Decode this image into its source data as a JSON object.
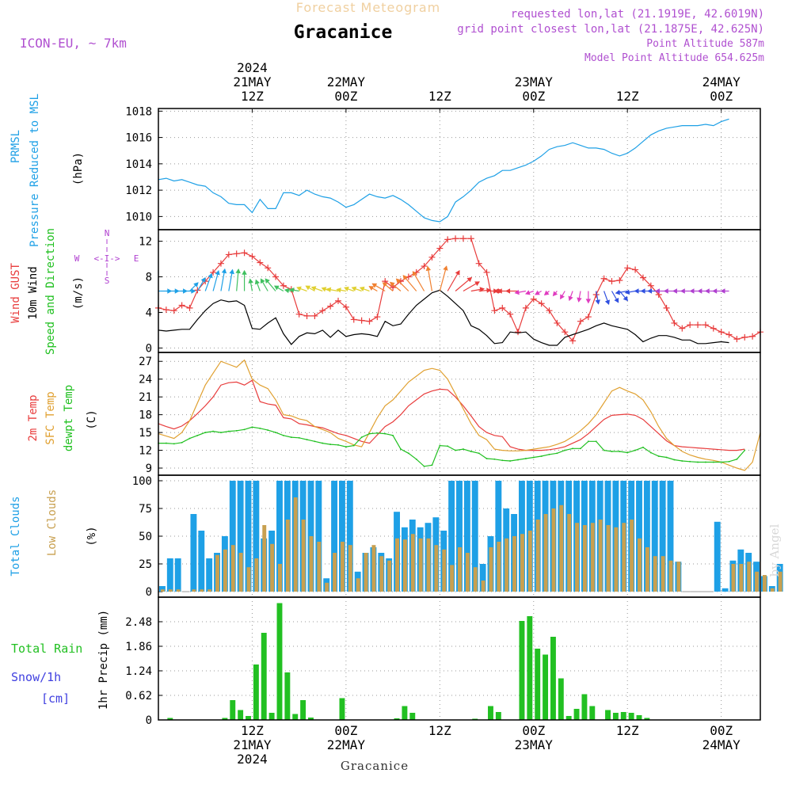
{
  "header": {
    "product_title": "Forecast Meteogram",
    "location": "Gracanice",
    "model": "ICON-EU, ~ 7km",
    "requested": "requested lon,lat (21.1919E, 42.6019N)",
    "grid_point": "grid point closest lon,lat (21.1875E, 42.625N)",
    "point_altitude": "Point Altitude 587m",
    "model_altitude": "Model Point Altitude 654.625m"
  },
  "time_axis": {
    "top_labels": [
      {
        "hour": 12,
        "lines": [
          "2024",
          "21MAY",
          "12Z"
        ]
      },
      {
        "hour": 24,
        "lines": [
          "22MAY",
          "00Z"
        ]
      },
      {
        "hour": 36,
        "lines": [
          "12Z"
        ]
      },
      {
        "hour": 48,
        "lines": [
          "23MAY",
          "00Z"
        ]
      },
      {
        "hour": 60,
        "lines": [
          "12Z"
        ]
      },
      {
        "hour": 72,
        "lines": [
          "24MAY",
          "00Z"
        ]
      }
    ],
    "bottom_labels": [
      {
        "hour": 12,
        "lines": [
          "12Z",
          "21MAY",
          "2024"
        ]
      },
      {
        "hour": 24,
        "lines": [
          "00Z",
          "22MAY"
        ]
      },
      {
        "hour": 36,
        "lines": [
          "12Z"
        ]
      },
      {
        "hour": 48,
        "lines": [
          "00Z",
          "23MAY"
        ]
      },
      {
        "hour": 60,
        "lines": [
          "12Z"
        ]
      },
      {
        "hour": 72,
        "lines": [
          "00Z",
          "24MAY"
        ]
      }
    ],
    "footer": "Gracanice",
    "watermark": "by Angel",
    "range_hours": [
      0,
      77
    ]
  },
  "colors": {
    "pressure": "#1ea0e6",
    "gust": "#e83c3c",
    "wind": "#000000",
    "temp2m": "#e83c3c",
    "sfc": "#e0a030",
    "dewpt": "#20c020",
    "total_cloud": "#1ea0e6",
    "low_cloud": "#c8a050",
    "rain": "#22c022",
    "snow": "#4040e0",
    "compass": "#b040d0",
    "header_purple": "#b050d0",
    "header_title": "#f0d0a0"
  },
  "chart_data": [
    {
      "type": "line",
      "panel": "pressure",
      "labels": {
        "left1": "PRMSL",
        "left2": "Pressure Reduced to MSL",
        "unit": "(hPa)"
      },
      "yticks": [
        1010,
        1012,
        1014,
        1016,
        1018
      ],
      "ylim": [
        1009,
        1018.2
      ],
      "x_start": 0,
      "x_step": 1,
      "series": [
        {
          "values": [
            1012.8,
            1012.9,
            1012.7,
            1012.8,
            1012.6,
            1012.4,
            1012.3,
            1011.8,
            1011.5,
            1011.0,
            1010.9,
            1010.9,
            1010.3,
            1011.3,
            1010.6,
            1010.6,
            1011.8,
            1011.8,
            1011.6,
            1012.0,
            1011.7,
            1011.5,
            1011.4,
            1011.1,
            1010.7,
            1010.9,
            1011.3,
            1011.7,
            1011.5,
            1011.4,
            1011.6,
            1011.3,
            1010.9,
            1010.4,
            1009.9,
            1009.7,
            1009.6,
            1010.0,
            1011.1,
            1011.5,
            1012.0,
            1012.6,
            1012.9,
            1013.1,
            1013.5,
            1013.5,
            1013.7,
            1013.9,
            1014.2,
            1014.6,
            1015.1,
            1015.3,
            1015.4,
            1015.6,
            1015.4,
            1015.2,
            1015.2,
            1015.1,
            1014.8,
            1014.6,
            1014.8,
            1015.2,
            1015.7,
            1016.2,
            1016.5,
            1016.7,
            1016.8,
            1016.9,
            1016.9,
            1016.9,
            1017.0,
            1016.9,
            1017.2,
            1017.4
          ]
        }
      ]
    },
    {
      "type": "line",
      "panel": "wind",
      "labels": {
        "left1": "Wind GUST",
        "left2": "10m Wind",
        "left3": "Speed and Direction",
        "unit": "(m/s)"
      },
      "compass": {
        "n": "N",
        "s": "S",
        "w": "W",
        "e": "E",
        "arrows": "<-I->"
      },
      "yticks": [
        0,
        4,
        8,
        12
      ],
      "ylim": [
        -0.5,
        13.3
      ],
      "x_start": 0,
      "x_step": 1,
      "series": [
        {
          "name": "gust",
          "values": [
            4.5,
            4.3,
            4.2,
            4.8,
            4.5,
            6.5,
            7.5,
            8.5,
            9.5,
            10.5,
            10.6,
            10.7,
            10.3,
            9.6,
            9.0,
            8.0,
            7.0,
            6.6,
            3.8,
            3.6,
            3.6,
            4.2,
            4.7,
            5.3,
            4.6,
            3.2,
            3.1,
            3.0,
            3.5,
            7.5,
            6.8,
            7.5,
            8.0,
            8.5,
            9.2,
            10.2,
            11.2,
            12.2,
            12.3,
            12.3,
            12.3,
            9.5,
            8.5,
            4.2,
            4.5,
            3.8,
            1.8,
            4.5,
            5.5,
            5.0,
            4.2,
            2.8,
            1.8,
            0.8,
            3.0,
            3.5,
            6.0,
            7.8,
            7.5,
            7.6,
            9.0,
            8.8,
            7.9,
            7.0,
            6.0,
            4.5,
            2.8,
            2.2,
            2.6,
            2.6,
            2.6,
            2.2,
            1.8,
            1.5,
            1.0,
            1.2,
            1.3,
            1.8
          ]
        },
        {
          "name": "wind",
          "values": [
            2.0,
            1.9,
            2.0,
            2.1,
            2.1,
            3.2,
            4.2,
            5.0,
            5.4,
            5.2,
            5.3,
            4.8,
            2.2,
            2.1,
            2.8,
            3.4,
            1.6,
            0.4,
            1.3,
            1.7,
            1.6,
            2.0,
            1.2,
            2.0,
            1.3,
            1.5,
            1.6,
            1.5,
            1.3,
            3.0,
            2.5,
            2.7,
            3.8,
            4.8,
            5.5,
            6.2,
            6.5,
            5.8,
            5.0,
            4.2,
            2.5,
            2.1,
            1.4,
            0.5,
            0.6,
            1.8,
            1.7,
            1.8,
            1.0,
            0.6,
            0.3,
            0.3,
            1.2,
            1.5,
            1.8,
            2.1,
            2.5,
            2.8,
            2.5,
            2.3,
            2.1,
            1.5,
            0.7,
            1.1,
            1.4,
            1.4,
            1.2,
            0.9,
            0.9,
            0.5,
            0.5,
            0.6,
            0.7,
            0.6
          ]
        }
      ],
      "wind_arrows": {
        "dir_deg": [
          90,
          90,
          90,
          90,
          45,
          30,
          20,
          15,
          10,
          10,
          5,
          0,
          -10,
          -20,
          -30,
          -40,
          -60,
          -80,
          -80,
          -70,
          -60,
          -70,
          -70,
          -80,
          -80,
          -70,
          -70,
          -70,
          -60,
          -60,
          -50,
          -50,
          -45,
          -40,
          -30,
          -10,
          15,
          30,
          50,
          60,
          80,
          85,
          90,
          90,
          -90,
          -90,
          -90,
          -100,
          -110,
          -120,
          -130,
          -140,
          -150,
          -160,
          -170,
          180,
          170,
          160,
          150,
          140,
          -100,
          -100,
          -90,
          -90,
          -90,
          -90,
          -90,
          -90,
          -90,
          -90,
          -90,
          -90,
          -90,
          -90
        ],
        "color_stops": [
          "#1ea0e6",
          "#40c060",
          "#e0d030",
          "#f08030",
          "#e83c3c",
          "#e03cc0",
          "#3050e0",
          "#b040d0"
        ]
      }
    },
    {
      "type": "line",
      "panel": "temperature",
      "labels": {
        "left1": "2m Temp",
        "left2": "SFC Temp",
        "left3": "dewpt Temp",
        "unit": "(C)"
      },
      "yticks": [
        9,
        12,
        15,
        18,
        21,
        24,
        27
      ],
      "ylim": [
        7.8,
        28.5
      ],
      "x_start": 0,
      "x_step": 1,
      "series": [
        {
          "name": "2m",
          "values": [
            16.5,
            16.0,
            15.6,
            16.1,
            17.0,
            18.2,
            19.5,
            21.0,
            23.0,
            23.4,
            23.5,
            23.0,
            23.8,
            20.2,
            19.8,
            19.6,
            17.5,
            17.3,
            16.5,
            16.3,
            16.0,
            15.8,
            15.3,
            14.8,
            14.5,
            14.0,
            13.5,
            13.2,
            14.6,
            16.0,
            16.8,
            18.0,
            19.5,
            20.5,
            21.5,
            22.0,
            22.3,
            22.2,
            21.0,
            19.5,
            17.8,
            16.0,
            15.0,
            14.5,
            14.3,
            12.6,
            12.2,
            12.0,
            12.0,
            12.0,
            12.1,
            12.3,
            12.6,
            13.2,
            13.8,
            14.8,
            16.0,
            17.2,
            17.9,
            18.0,
            18.1,
            17.9,
            17.2,
            16.0,
            14.8,
            13.6,
            12.8,
            12.6,
            12.5,
            12.4,
            12.3,
            12.2,
            12.1,
            12.0,
            12.0,
            12.2
          ]
        },
        {
          "name": "sfc",
          "values": [
            14.8,
            14.4,
            14.0,
            15.0,
            17.0,
            20.0,
            23.0,
            25.0,
            27.0,
            26.5,
            26.0,
            27.2,
            24.0,
            23.0,
            22.4,
            20.5,
            18.0,
            17.8,
            17.3,
            17.0,
            16.0,
            15.5,
            15.0,
            14.0,
            13.5,
            12.9,
            12.6,
            15.0,
            17.5,
            19.5,
            20.5,
            22.0,
            23.5,
            24.5,
            25.5,
            25.8,
            25.5,
            24.0,
            21.5,
            19.0,
            16.5,
            14.5,
            13.8,
            12.2,
            12.0,
            11.9,
            11.9,
            12.0,
            12.2,
            12.4,
            12.6,
            13.0,
            13.5,
            14.3,
            15.3,
            16.5,
            18.0,
            20.0,
            22.0,
            22.6,
            22.0,
            21.5,
            20.5,
            18.5,
            16.0,
            14.0,
            12.8,
            11.8,
            11.2,
            10.8,
            10.5,
            10.3,
            10.0,
            9.5,
            9.0,
            8.6,
            10.0,
            15.0
          ]
        },
        {
          "name": "dewpt",
          "values": [
            13.2,
            13.2,
            13.1,
            13.3,
            14.0,
            14.5,
            15.0,
            15.2,
            15.0,
            15.2,
            15.3,
            15.5,
            15.9,
            15.7,
            15.4,
            15.0,
            14.5,
            14.2,
            14.1,
            13.8,
            13.5,
            13.2,
            13.0,
            12.9,
            12.6,
            12.8,
            14.2,
            14.8,
            14.9,
            14.8,
            14.5,
            12.2,
            11.5,
            10.5,
            9.3,
            9.5,
            12.8,
            12.7,
            12.0,
            12.2,
            11.8,
            11.5,
            10.6,
            10.5,
            10.3,
            10.2,
            10.4,
            10.6,
            10.8,
            11.0,
            11.3,
            11.5,
            12.0,
            12.3,
            12.3,
            13.5,
            13.5,
            12.0,
            11.8,
            11.8,
            11.6,
            12.0,
            12.5,
            11.6,
            11.0,
            10.8,
            10.4,
            10.2,
            10.1,
            10.0,
            10.0,
            10.0,
            10.0,
            10.1,
            10.5,
            12.0
          ]
        }
      ]
    },
    {
      "type": "bar",
      "panel": "clouds",
      "labels": {
        "left1": "Total Clouds",
        "left2": "Low Clouds",
        "unit": "(%)"
      },
      "yticks": [
        0,
        25,
        50,
        75,
        100
      ],
      "ylim": [
        -5,
        105
      ],
      "x_start": 0.5,
      "x_step": 1,
      "series": [
        {
          "name": "total",
          "values": [
            5,
            30,
            30,
            0,
            70,
            55,
            30,
            35,
            50,
            100,
            100,
            100,
            100,
            48,
            55,
            100,
            100,
            100,
            100,
            100,
            100,
            12,
            100,
            100,
            100,
            18,
            35,
            40,
            35,
            30,
            72,
            58,
            65,
            58,
            62,
            67,
            55,
            100,
            100,
            100,
            100,
            25,
            50,
            100,
            75,
            70,
            100,
            100,
            100,
            100,
            100,
            100,
            100,
            100,
            100,
            100,
            100,
            100,
            100,
            100,
            100,
            100,
            100,
            100,
            100,
            100,
            27,
            0,
            0,
            0,
            0,
            63,
            3,
            28,
            38,
            35,
            27,
            14,
            5,
            25
          ]
        },
        {
          "name": "low",
          "values": [
            2,
            2,
            2,
            0,
            2,
            2,
            2,
            33,
            38,
            42,
            35,
            22,
            30,
            60,
            43,
            25,
            65,
            85,
            65,
            50,
            45,
            8,
            35,
            45,
            42,
            12,
            35,
            42,
            32,
            28,
            48,
            47,
            52,
            48,
            48,
            42,
            38,
            24,
            40,
            35,
            22,
            10,
            40,
            45,
            48,
            50,
            52,
            55,
            65,
            70,
            75,
            78,
            70,
            62,
            60,
            62,
            65,
            60,
            58,
            62,
            65,
            48,
            40,
            32,
            32,
            28,
            27,
            0,
            0,
            0,
            0,
            0,
            0,
            25,
            25,
            27,
            18,
            15,
            3,
            18
          ]
        }
      ]
    },
    {
      "type": "bar",
      "panel": "precip",
      "labels": {
        "left1": "Total Rain",
        "left2": "Snow/1h",
        "left3": "[cm]",
        "unit": "1hr Precip (mm)"
      },
      "yticks": [
        0,
        0.62,
        1.24,
        1.86,
        2.48
      ],
      "ytick_labels": [
        "0",
        "0.62",
        "1.24",
        "1.86",
        "2.48"
      ],
      "ylim": [
        0,
        3.1
      ],
      "x_start": 0.5,
      "x_step": 1,
      "series": [
        {
          "name": "rain",
          "values": [
            0,
            0.05,
            0,
            0,
            0,
            0,
            0,
            0,
            0.05,
            0.5,
            0.25,
            0.1,
            1.4,
            2.2,
            0.18,
            2.95,
            1.2,
            0.15,
            0.5,
            0.06,
            0,
            0,
            0,
            0.55,
            0,
            0,
            0,
            0,
            0,
            0,
            0.04,
            0.35,
            0.18,
            0,
            0,
            0,
            0,
            0,
            0,
            0,
            0.03,
            0,
            0.35,
            0.2,
            0,
            0,
            2.5,
            2.62,
            1.8,
            1.65,
            2.1,
            1.05,
            0.1,
            0.28,
            0.65,
            0.35,
            0,
            0.25,
            0.18,
            0.2,
            0.18,
            0.12,
            0.05,
            0,
            0,
            0,
            0,
            0,
            0,
            0,
            0,
            0,
            0,
            0,
            0,
            0,
            0
          ]
        },
        {
          "name": "snow",
          "values": [
            0,
            0,
            0,
            0,
            0,
            0,
            0,
            0,
            0,
            0,
            0,
            0,
            0,
            0,
            0,
            0,
            0,
            0,
            0,
            0,
            0,
            0,
            0,
            0,
            0,
            0,
            0,
            0,
            0,
            0,
            0,
            0,
            0,
            0,
            0,
            0,
            0,
            0,
            0,
            0,
            0,
            0,
            0,
            0,
            0,
            0,
            0,
            0,
            0,
            0,
            0,
            0,
            0,
            0,
            0,
            0,
            0,
            0,
            0,
            0,
            0,
            0,
            0,
            0,
            0,
            0,
            0,
            0,
            0,
            0,
            0,
            0,
            0,
            0,
            0,
            0,
            0
          ]
        }
      ]
    }
  ]
}
